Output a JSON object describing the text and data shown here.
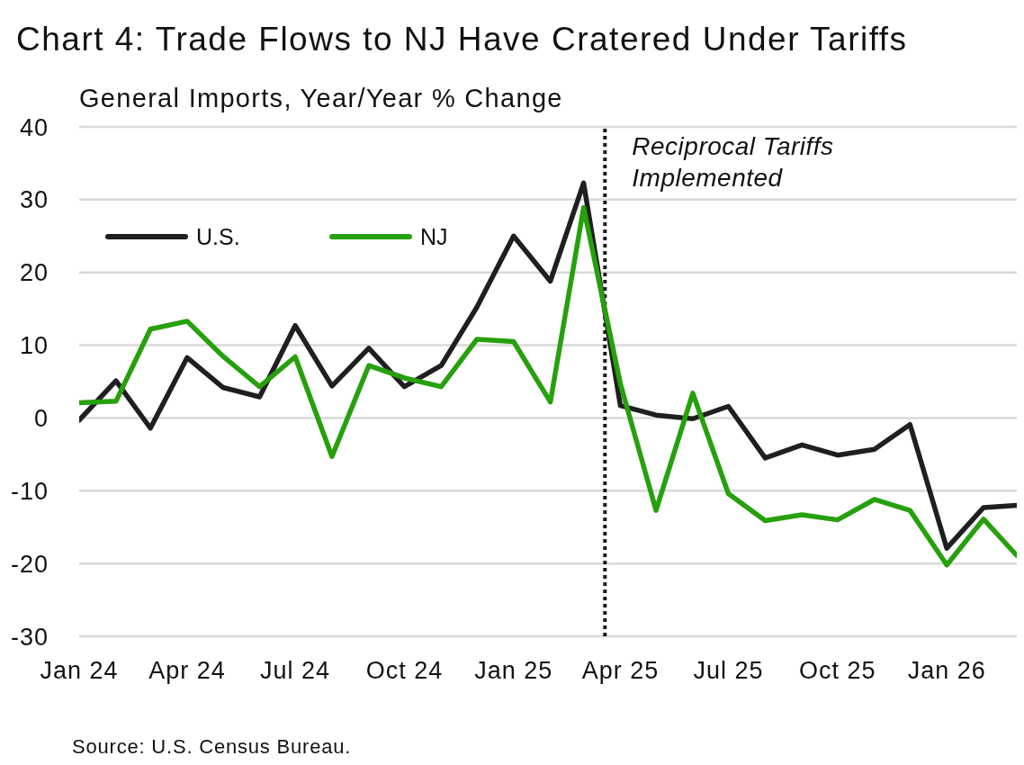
{
  "chart_data": {
    "type": "line",
    "title": "Chart 4: Trade Flows to NJ Have Cratered Under Tariffs",
    "ylabel": "General Imports, Year/Year % Change",
    "x": [
      "2024-01",
      "2024-02",
      "2024-03",
      "2024-04",
      "2024-05",
      "2024-06",
      "2024-07",
      "2024-08",
      "2024-09",
      "2024-10",
      "2024-11",
      "2024-12",
      "2025-01",
      "2025-02",
      "2025-03",
      "2025-04",
      "2025-05",
      "2025-06",
      "2025-07",
      "2025-08",
      "2025-09",
      "2025-10",
      "2025-11",
      "2025-12",
      "2026-01",
      "2026-02",
      "2026-03"
    ],
    "series": [
      {
        "name": "U.S.",
        "color": "#1f1f1f",
        "values": [
          -0.3,
          5.1,
          -1.4,
          8.3,
          4.2,
          2.9,
          12.7,
          4.4,
          9.6,
          4.3,
          7.2,
          15.2,
          25.0,
          18.8,
          32.3,
          1.7,
          0.4,
          -0.1,
          1.6,
          -5.5,
          -3.7,
          -5.1,
          -4.3,
          -0.9,
          -17.9,
          -12.3,
          -12.0
        ]
      },
      {
        "name": "NJ",
        "color": "#26a00c",
        "values": [
          2.1,
          2.3,
          12.2,
          13.3,
          8.5,
          4.3,
          8.4,
          -5.3,
          7.2,
          5.5,
          4.3,
          10.8,
          10.5,
          2.2,
          28.9,
          4.7,
          -12.7,
          3.4,
          -10.4,
          -14.1,
          -13.3,
          -14.0,
          -11.2,
          -12.7,
          -20.2,
          -13.9,
          -18.9
        ]
      }
    ],
    "xlim": [
      "2024-01",
      "2026-03"
    ],
    "xticks": [
      {
        "value": "2024-01",
        "label": "Jan 24"
      },
      {
        "value": "2024-04",
        "label": "Apr 24"
      },
      {
        "value": "2024-07",
        "label": "Jul 24"
      },
      {
        "value": "2024-10",
        "label": "Oct 24"
      },
      {
        "value": "2025-01",
        "label": "Jan 25"
      },
      {
        "value": "2025-04",
        "label": "Apr 25"
      },
      {
        "value": "2025-07",
        "label": "Jul 25"
      },
      {
        "value": "2025-10",
        "label": "Oct 25"
      },
      {
        "value": "2026-01",
        "label": "Jan 26"
      }
    ],
    "ylim": [
      -30,
      40
    ],
    "yticks": [
      -30,
      -20,
      -10,
      0,
      10,
      20,
      30,
      40
    ],
    "grid": "y",
    "legend": "top left",
    "line_style": "solid",
    "ref_lines": [
      {
        "axis": "x",
        "value": "2025-03-19",
        "label": "Reciprocal Tariffs Implemented",
        "color": "#1a1a1a",
        "line_style": "dotted"
      }
    ],
    "annotations": [
      "Source: U.S. Census Bureau."
    ]
  }
}
